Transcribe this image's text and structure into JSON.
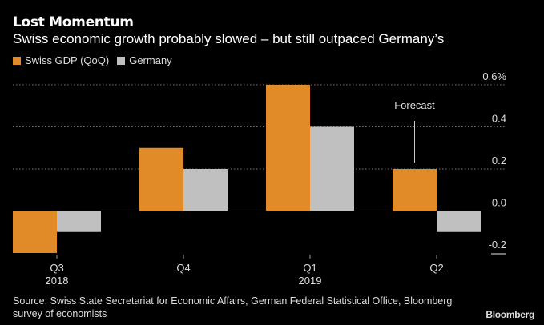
{
  "chart_data": {
    "type": "bar",
    "title": "Lost Momentum",
    "subtitle": "Swiss economic growth probably slowed – but still outpaced Germany’s",
    "categories": [
      "Q3",
      "Q4",
      "Q1",
      "Q2"
    ],
    "category_years": [
      "2018",
      "",
      "2019",
      ""
    ],
    "series": [
      {
        "name": "Swiss GDP (QoQ)",
        "color": "#e08b27",
        "values": [
          -0.2,
          0.3,
          0.6,
          0.2
        ]
      },
      {
        "name": "Germany",
        "color": "#c0c0c0",
        "values": [
          -0.1,
          0.2,
          0.4,
          -0.1
        ]
      }
    ],
    "yticks": [
      0.6,
      0.4,
      0.2,
      0.0,
      -0.2
    ],
    "ytick_labels": [
      "0.6%",
      "0.4",
      "0.2",
      "0.0",
      "-0.2"
    ],
    "ylim": [
      -0.2,
      0.6
    ],
    "xlabel": "",
    "ylabel": "",
    "grid": true,
    "legend_position": "top-left",
    "annotations": [
      {
        "text": "Forecast",
        "category": "Q2",
        "series": "Swiss GDP (QoQ)"
      }
    ]
  },
  "source": "Source: Swiss State Secretariat for Economic Affairs, German Federal Statistical Office, Bloomberg survey of economists",
  "brand": "Bloomberg"
}
